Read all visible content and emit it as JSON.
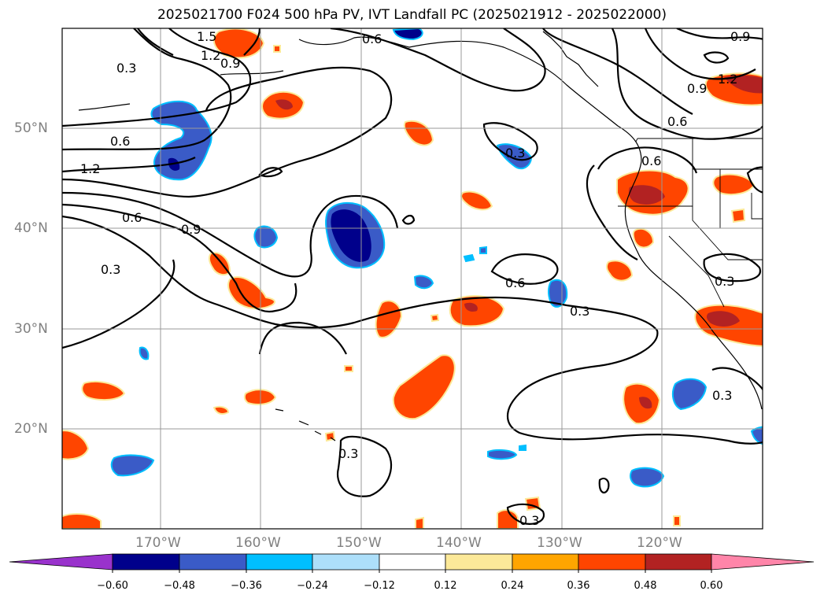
{
  "title": "2025021700 F024 500 hPa PV, IVT Landfall PC (2025021912 - 2025022000)",
  "map": {
    "lat_labels": [
      "50°N",
      "40°N",
      "30°N",
      "20°N"
    ],
    "lon_labels": [
      "170°W",
      "160°W",
      "150°W",
      "140°W",
      "130°W",
      "120°W"
    ],
    "contour_labels": [
      "1.5",
      "1.2",
      "0.9",
      "0.6",
      "0.3",
      "0.6",
      "1.2",
      "0.6",
      "0.9",
      "0.3",
      "0.3",
      "0.6",
      "0.3",
      "0.3",
      "0.6",
      "0.6",
      "0.3",
      "1.2",
      "0.9",
      "0.9",
      "0.3",
      "0.3",
      "1.2"
    ]
  },
  "colorbar": {
    "ticks": [
      "−0.60",
      "−0.48",
      "−0.36",
      "−0.24",
      "−0.12",
      "0.12",
      "0.24",
      "0.36",
      "0.48",
      "0.60"
    ],
    "colors": [
      "#9932CC",
      "#00008B",
      "#3A5BC7",
      "#00BFFF",
      "#ADDFFA",
      "#FFFFFF",
      "#FCE999",
      "#FFA500",
      "#FF4500",
      "#B22222",
      "#FF85A9"
    ]
  }
}
